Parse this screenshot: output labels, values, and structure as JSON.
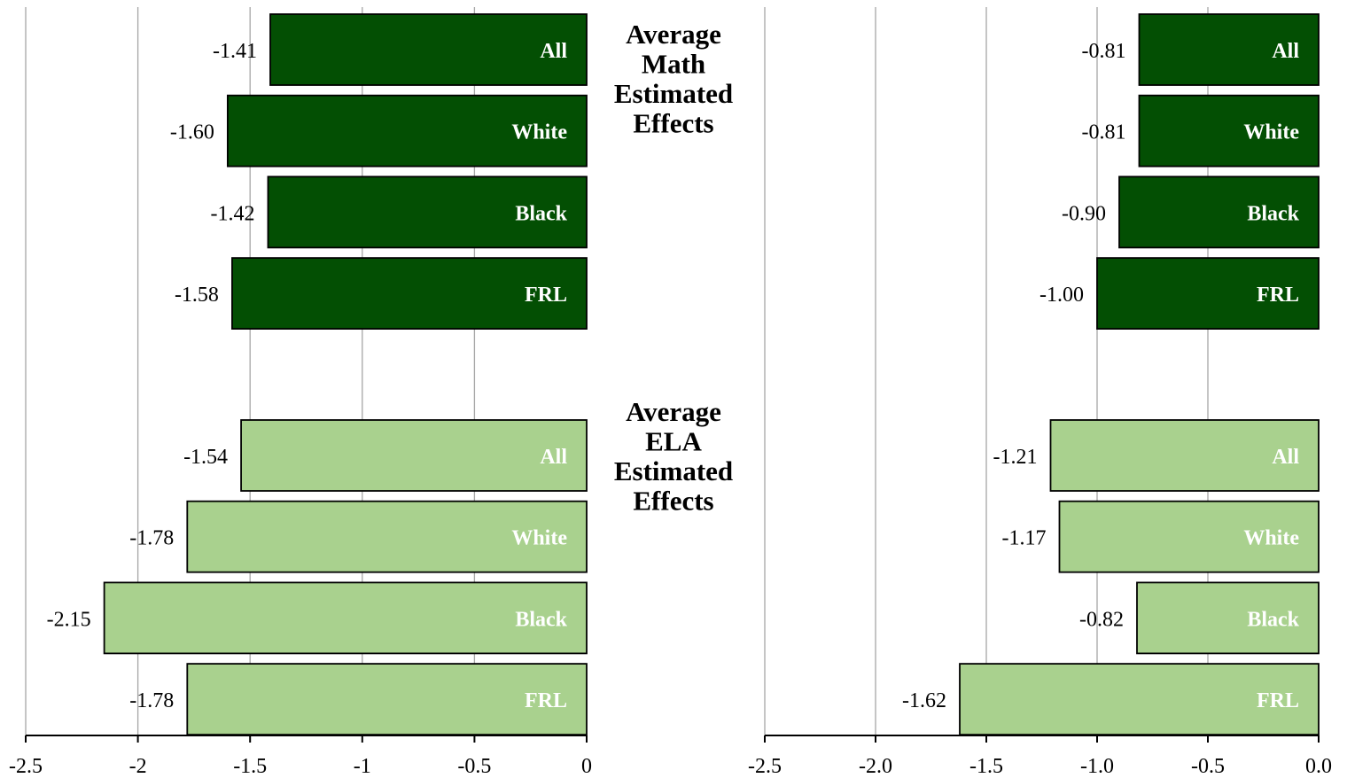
{
  "chart_data": {
    "type": "bar",
    "orientation": "horizontal",
    "group_titles": [
      [
        "Average",
        "Math",
        "Estimated",
        "Effects"
      ],
      [
        "Average",
        "ELA",
        "Estimated",
        "Effects"
      ]
    ],
    "colors": {
      "math": "#034f03",
      "ela": "#a9d18e"
    },
    "panels": [
      {
        "xlim": [
          -2.5,
          0
        ],
        "ticks": [
          -2.5,
          -2,
          -1.5,
          -1,
          -0.5,
          0
        ],
        "tick_labels": [
          "-2.5",
          "-2",
          "-1.5",
          "-1",
          "-0.5",
          "0"
        ],
        "grid": true,
        "groups": [
          {
            "series": "math",
            "categories": [
              "All",
              "White",
              "Black",
              "FRL"
            ],
            "values": [
              -1.41,
              -1.6,
              -1.42,
              -1.58
            ],
            "labels": [
              "-1.41",
              "-1.60",
              "-1.42",
              "-1.58"
            ]
          },
          {
            "series": "ela",
            "categories": [
              "All",
              "White",
              "Black",
              "FRL"
            ],
            "values": [
              -1.54,
              -1.78,
              -2.15,
              -1.78
            ],
            "labels": [
              "-1.54",
              "-1.78",
              "-2.15",
              "-1.78"
            ]
          }
        ]
      },
      {
        "xlim": [
          -2.5,
          0
        ],
        "ticks": [
          -2.5,
          -2.0,
          -1.5,
          -1.0,
          -0.5,
          0.0
        ],
        "tick_labels": [
          "-2.5",
          "-2.0",
          "-1.5",
          "-1.0",
          "-0.5",
          "0.0"
        ],
        "grid": true,
        "groups": [
          {
            "series": "math",
            "categories": [
              "All",
              "White",
              "Black",
              "FRL"
            ],
            "values": [
              -0.81,
              -0.81,
              -0.9,
              -1.0
            ],
            "labels": [
              "-0.81",
              "-0.81",
              "-0.90",
              "-1.00"
            ]
          },
          {
            "series": "ela",
            "categories": [
              "All",
              "White",
              "Black",
              "FRL"
            ],
            "values": [
              -1.21,
              -1.17,
              -0.82,
              -1.62
            ],
            "labels": [
              "-1.21",
              "-1.17",
              "-0.82",
              "-1.62"
            ]
          }
        ]
      }
    ]
  }
}
